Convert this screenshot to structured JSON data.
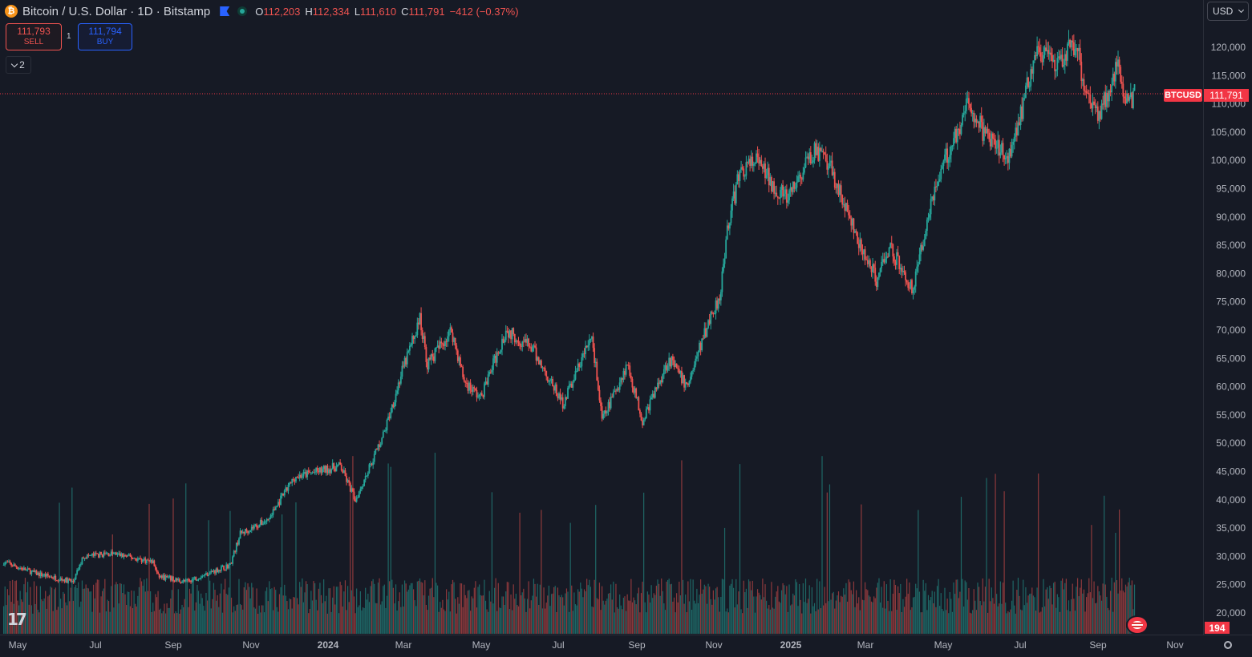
{
  "header": {
    "title": "Bitcoin / U.S. Dollar · 1D · Bitstamp",
    "open_label": "O",
    "open": "112,203",
    "high_label": "H",
    "high": "112,334",
    "low_label": "L",
    "low": "111,610",
    "close_label": "C",
    "close": "111,791",
    "change": "−412 (−0.37%)"
  },
  "trading": {
    "sell_price": "111,793",
    "sell_label": "SELL",
    "quantity": "1",
    "buy_price": "111,794",
    "buy_label": "BUY"
  },
  "indicators_toggle": "2",
  "currency_select": "USD",
  "symbol_label": "BTCUSD",
  "last_price_label": "111,791",
  "volume_label": "194",
  "colors": {
    "up": "#26a69a",
    "down": "#ef5350",
    "background": "#161a25",
    "price_line": "#f23645"
  },
  "chart_data": {
    "type": "candlestick",
    "interval": "1D",
    "x_tick_labels": [
      "May",
      "Jul",
      "Sep",
      "Nov",
      "2024",
      "Mar",
      "May",
      "Jul",
      "Sep",
      "Nov",
      "2025",
      "Mar",
      "May",
      "Jul",
      "Sep",
      "Nov"
    ],
    "y_tick_labels": [
      "120,000",
      "115,000",
      "110,000",
      "105,000",
      "100,000",
      "95,000",
      "90,000",
      "85,000",
      "80,000",
      "75,000",
      "70,000",
      "65,000",
      "60,000",
      "55,000",
      "50,000",
      "45,000",
      "40,000",
      "35,000",
      "30,000",
      "25,000",
      "20,000"
    ],
    "ylim": [
      20000,
      120000
    ],
    "last_price": 111791,
    "series": [
      {
        "name": "BTCUSD",
        "dates": [
          "2023-04-20",
          "2023-05-15",
          "2023-06-14",
          "2023-06-22",
          "2023-07-15",
          "2023-08-16",
          "2023-08-20",
          "2023-09-11",
          "2023-10-16",
          "2023-10-24",
          "2023-11-15",
          "2023-12-06",
          "2024-01-11",
          "2024-01-23",
          "2024-02-15",
          "2024-02-28",
          "2024-03-14",
          "2024-03-20",
          "2024-04-08",
          "2024-04-18",
          "2024-05-01",
          "2024-05-21",
          "2024-06-10",
          "2024-07-05",
          "2024-07-28",
          "2024-08-05",
          "2024-08-25",
          "2024-09-06",
          "2024-09-27",
          "2024-10-11",
          "2024-10-29",
          "2024-11-06",
          "2024-11-12",
          "2024-11-22",
          "2024-12-05",
          "2024-12-17",
          "2024-12-30",
          "2025-01-20",
          "2025-02-03",
          "2025-02-26",
          "2025-03-10",
          "2025-03-20",
          "2025-04-08",
          "2025-04-22",
          "2025-05-10",
          "2025-05-22",
          "2025-06-05",
          "2025-06-22",
          "2025-07-03",
          "2025-07-14",
          "2025-07-30",
          "2025-08-14",
          "2025-08-22",
          "2025-09-01",
          "2025-09-18",
          "2025-09-22",
          "2025-09-26",
          "2025-09-30"
        ],
        "close": [
          29000,
          27000,
          25500,
          30000,
          30500,
          29000,
          26500,
          25500,
          28500,
          34000,
          36500,
          44000,
          46000,
          40000,
          52000,
          62000,
          72000,
          64000,
          70000,
          61000,
          58000,
          70000,
          67000,
          57000,
          69000,
          54000,
          64000,
          54000,
          65000,
          60000,
          72000,
          76000,
          88000,
          98000,
          100000,
          96000,
          93000,
          102000,
          98000,
          84000,
          79000,
          85000,
          77000,
          93000,
          104000,
          110000,
          104000,
          101000,
          109000,
          120000,
          116000,
          121000,
          113000,
          108000,
          117000,
          112000,
          110000,
          111791
        ]
      }
    ]
  }
}
